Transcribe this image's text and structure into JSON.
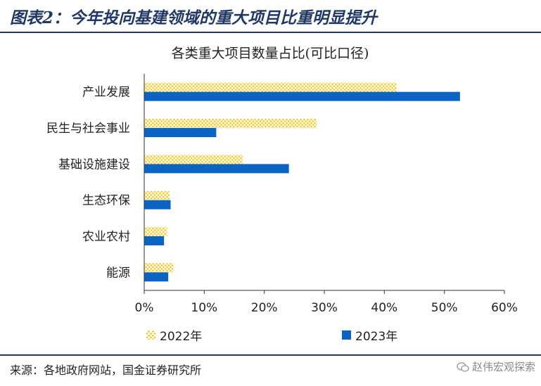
{
  "header": {
    "title": "图表2：今年投向基建领域的重大项目比重明显提升"
  },
  "footer": {
    "source": "来源：各地政府网站，国金证券研究所",
    "watermark": "赵伟宏观探索"
  },
  "colors": {
    "series_2022": "#f5c518",
    "series_2023": "#0b63c4",
    "rule": "#1f3864"
  },
  "chart_data": {
    "type": "bar",
    "orientation": "horizontal",
    "title": "各类重大项目数量占比(可比口径)",
    "categories": [
      "产业发展",
      "民生与社会事业",
      "基础设施建设",
      "生态环保",
      "农业农村",
      "能源"
    ],
    "series": [
      {
        "name": "2022年",
        "values": [
          42.0,
          28.7,
          16.4,
          4.2,
          3.8,
          4.9
        ]
      },
      {
        "name": "2023年",
        "values": [
          52.6,
          12.0,
          24.1,
          4.4,
          3.3,
          4.0
        ]
      }
    ],
    "xlim": [
      0,
      60
    ],
    "xticks": [
      "0%",
      "10%",
      "20%",
      "30%",
      "40%",
      "50%",
      "60%"
    ],
    "grid": false,
    "legend": "bottom"
  }
}
